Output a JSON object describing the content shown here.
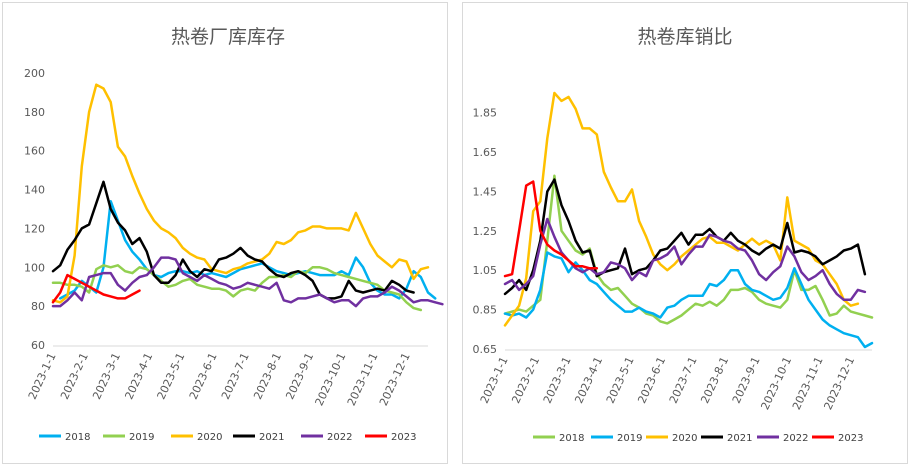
{
  "colors": {
    "2018": "#00b0f0",
    "2019": "#92d050",
    "2020": "#ffc000",
    "2021": "#000000",
    "2022": "#7030a0",
    "2023": "#ff0000",
    "axis": "#d9d9d9",
    "text": "#595959"
  },
  "chart_data": [
    {
      "type": "line",
      "title": "热卷厂库库存",
      "x_tick_labels": [
        "2023-1-1",
        "2023-2-1",
        "2023-3-1",
        "2023-4-1",
        "2023-5-1",
        "2023-6-1",
        "2023-7-1",
        "2023-8-1",
        "2023-9-1",
        "2023-10-1",
        "2023-11-1",
        "2023-12-1"
      ],
      "y_ticks": [
        "60",
        "80",
        "100",
        "120",
        "140",
        "160",
        "180",
        "200"
      ],
      "ylim": [
        60,
        200
      ],
      "x_unit": "week",
      "xlim": [
        0,
        52
      ],
      "grid": false,
      "legend_position": "bottom",
      "series": [
        {
          "name": "2018",
          "color_key": "2018",
          "x_start": 1,
          "values": [
            84,
            86,
            88,
            93,
            90,
            87,
            100,
            134,
            124,
            114,
            108,
            104,
            99,
            96,
            95,
            97,
            98,
            98,
            97,
            98,
            96,
            97,
            96,
            95,
            97,
            99,
            100,
            101,
            102,
            100,
            98,
            97,
            96,
            97,
            98,
            97,
            96,
            96,
            96,
            98,
            96,
            105,
            100,
            92,
            88,
            86,
            86,
            84,
            89,
            98,
            95,
            87,
            84
          ]
        },
        {
          "name": "2019",
          "color_key": "2019",
          "x_start": 0,
          "values": [
            92,
            92,
            91,
            91,
            90,
            87,
            99,
            101,
            100,
            101,
            98,
            97,
            100,
            99,
            96,
            93,
            90,
            91,
            93,
            94,
            91,
            90,
            89,
            89,
            88,
            85,
            88,
            89,
            88,
            92,
            95,
            95,
            96,
            95,
            98,
            97,
            100,
            100,
            99,
            97,
            96,
            95,
            94,
            93,
            92,
            91,
            88,
            87,
            86,
            82,
            79,
            78
          ]
        },
        {
          "name": "2020",
          "color_key": "2020",
          "x_start": 0,
          "values": [
            83,
            82,
            85,
            106,
            152,
            180,
            194,
            192,
            185,
            162,
            157,
            147,
            138,
            130,
            124,
            120,
            118,
            115,
            110,
            107,
            105,
            104,
            99,
            98,
            97,
            99,
            100,
            102,
            103,
            104,
            107,
            113,
            112,
            114,
            118,
            119,
            121,
            121,
            120,
            120,
            120,
            119,
            128,
            120,
            112,
            106,
            103,
            100,
            104,
            103,
            94,
            99,
            100
          ]
        },
        {
          "name": "2021",
          "color_key": "2021",
          "x_start": 0,
          "values": [
            98,
            101,
            109,
            114,
            120,
            122,
            133,
            144,
            130,
            123,
            119,
            112,
            115,
            108,
            96,
            92,
            92,
            96,
            104,
            98,
            95,
            99,
            98,
            104,
            105,
            107,
            110,
            106,
            104,
            103,
            99,
            96,
            95,
            97,
            98,
            96,
            93,
            86,
            84,
            84,
            85,
            93,
            88,
            87,
            88,
            89,
            88,
            93,
            91,
            88,
            87
          ]
        },
        {
          "name": "2022",
          "color_key": "2022",
          "x_start": 0,
          "values": [
            80,
            80,
            83,
            87,
            83,
            95,
            96,
            97,
            97,
            91,
            88,
            92,
            95,
            96,
            100,
            105,
            105,
            104,
            97,
            95,
            93,
            96,
            94,
            92,
            91,
            89,
            90,
            92,
            91,
            90,
            89,
            92,
            83,
            82,
            84,
            84,
            85,
            86,
            84,
            82,
            83,
            83,
            80,
            84,
            85,
            85,
            87,
            90,
            88,
            85,
            82,
            83,
            83,
            82,
            81
          ]
        },
        {
          "name": "2023",
          "color_key": "2023",
          "x_start": 0,
          "values": [
            82,
            87,
            96,
            94,
            92,
            90,
            88,
            86,
            85,
            84,
            84,
            86,
            88
          ]
        }
      ]
    },
    {
      "type": "line",
      "title": "热卷库销比",
      "x_tick_labels": [
        "2023-1-1",
        "2023-2-1",
        "2023-3-1",
        "2023-4-1",
        "2023-5-1",
        "2023-6-1",
        "2023-7-1",
        "2023-8-1",
        "2023-9-1",
        "2023-10-1",
        "2023-11-1",
        "2023-12-1"
      ],
      "y_ticks": [
        "0.65",
        "0.85",
        "1.05",
        "1.25",
        "1.45",
        "1.65",
        "1.85"
      ],
      "ylim": [
        0.65,
        1.95
      ],
      "x_unit": "week",
      "xlim": [
        0,
        52
      ],
      "grid": false,
      "legend_position": "bottom",
      "series": [
        {
          "name": "2018",
          "color_key": "2019",
          "x_start": 0,
          "values": [
            0.83,
            0.84,
            0.85,
            0.84,
            0.87,
            0.9,
            1.2,
            1.53,
            1.25,
            1.2,
            1.15,
            1.13,
            1.16,
            1.03,
            0.98,
            0.95,
            0.96,
            0.92,
            0.88,
            0.86,
            0.83,
            0.82,
            0.79,
            0.78,
            0.8,
            0.82,
            0.85,
            0.88,
            0.87,
            0.89,
            0.87,
            0.9,
            0.95,
            0.95,
            0.96,
            0.94,
            0.9,
            0.88,
            0.87,
            0.86,
            0.9,
            1.05,
            0.95,
            0.95,
            0.97,
            0.9,
            0.82,
            0.83,
            0.87,
            0.84,
            0.83,
            0.82,
            0.81
          ]
        },
        {
          "name": "2019",
          "color_key": "2018",
          "x_start": 0,
          "values": [
            0.83,
            0.82,
            0.83,
            0.81,
            0.85,
            0.95,
            1.14,
            1.12,
            1.11,
            1.04,
            1.09,
            1.05,
            1.0,
            0.98,
            0.94,
            0.9,
            0.87,
            0.84,
            0.84,
            0.86,
            0.84,
            0.83,
            0.81,
            0.86,
            0.87,
            0.9,
            0.92,
            0.92,
            0.92,
            0.98,
            0.97,
            1.0,
            1.05,
            1.05,
            0.98,
            0.95,
            0.94,
            0.92,
            0.9,
            0.91,
            0.96,
            1.06,
            0.98,
            0.9,
            0.85,
            0.8,
            0.77,
            0.75,
            0.73,
            0.72,
            0.71,
            0.66,
            0.68
          ]
        },
        {
          "name": "2020",
          "color_key": "2020",
          "x_start": 0,
          "values": [
            0.77,
            0.82,
            0.87,
            1.01,
            1.35,
            1.4,
            1.72,
            1.95,
            1.91,
            1.93,
            1.87,
            1.77,
            1.77,
            1.74,
            1.55,
            1.47,
            1.4,
            1.4,
            1.46,
            1.3,
            1.22,
            1.13,
            1.08,
            1.05,
            1.08,
            1.12,
            1.15,
            1.18,
            1.21,
            1.22,
            1.19,
            1.19,
            1.17,
            1.15,
            1.18,
            1.21,
            1.18,
            1.2,
            1.18,
            1.1,
            1.42,
            1.2,
            1.18,
            1.16,
            1.1,
            1.08,
            1.03,
            0.98,
            0.9,
            0.87,
            0.88
          ]
        },
        {
          "name": "2021",
          "color_key": "2021",
          "x_start": 0,
          "values": [
            0.93,
            0.96,
            1.0,
            0.95,
            1.05,
            1.2,
            1.45,
            1.51,
            1.38,
            1.3,
            1.2,
            1.14,
            1.15,
            1.02,
            1.04,
            1.05,
            1.06,
            1.16,
            1.03,
            1.05,
            1.06,
            1.1,
            1.15,
            1.16,
            1.2,
            1.24,
            1.18,
            1.23,
            1.23,
            1.26,
            1.22,
            1.2,
            1.24,
            1.2,
            1.18,
            1.15,
            1.13,
            1.16,
            1.18,
            1.16,
            1.29,
            1.14,
            1.15,
            1.14,
            1.12,
            1.08,
            1.1,
            1.12,
            1.15,
            1.16,
            1.18,
            1.03
          ]
        },
        {
          "name": "2022",
          "color_key": "2022",
          "x_start": 0,
          "values": [
            0.98,
            1.0,
            0.95,
            0.98,
            1.02,
            1.18,
            1.31,
            1.22,
            1.14,
            1.1,
            1.06,
            1.04,
            1.06,
            1.03,
            1.04,
            1.09,
            1.08,
            1.06,
            1.0,
            1.04,
            1.02,
            1.1,
            1.11,
            1.13,
            1.17,
            1.08,
            1.13,
            1.17,
            1.17,
            1.23,
            1.22,
            1.2,
            1.19,
            1.16,
            1.15,
            1.1,
            1.03,
            1.0,
            1.04,
            1.07,
            1.17,
            1.12,
            1.04,
            1.0,
            1.02,
            1.05,
            0.98,
            0.93,
            0.9,
            0.9,
            0.95,
            0.94
          ]
        },
        {
          "name": "2023",
          "color_key": "2023",
          "x_start": 0,
          "values": [
            1.02,
            1.03,
            1.25,
            1.48,
            1.5,
            1.25,
            1.18,
            1.15,
            1.13,
            1.1,
            1.07,
            1.07,
            1.06,
            1.06
          ]
        }
      ]
    }
  ]
}
